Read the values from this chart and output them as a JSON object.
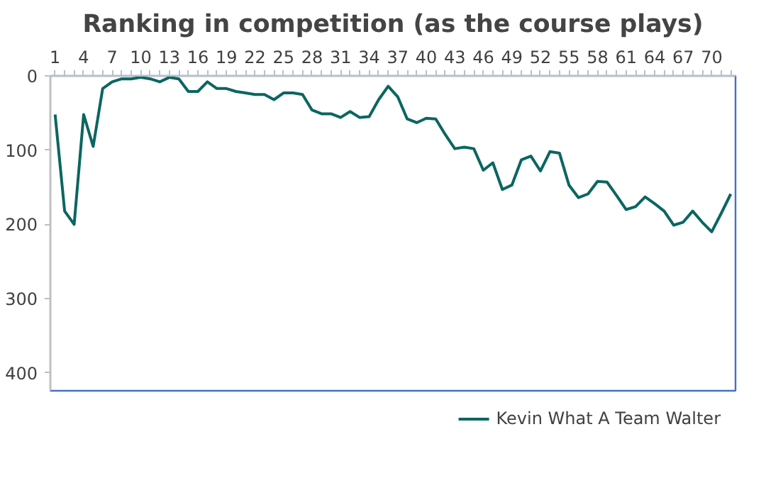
{
  "chart_data": {
    "type": "line",
    "title": "Ranking in competition (as the course plays)",
    "categories": [
      "1",
      null,
      null,
      "4",
      null,
      null,
      "7",
      null,
      null,
      "10",
      null,
      null,
      "13",
      null,
      null,
      "16",
      null,
      null,
      "19",
      null,
      null,
      "22",
      null,
      null,
      "25",
      null,
      null,
      "28",
      null,
      null,
      "31",
      null,
      null,
      "34",
      null,
      null,
      "37",
      null,
      null,
      "40",
      null,
      null,
      "43",
      null,
      null,
      "46",
      null,
      null,
      "49",
      null,
      null,
      "52",
      null,
      null,
      "55",
      null,
      null,
      "58",
      null,
      null,
      "61",
      null,
      null,
      "64",
      null,
      null,
      "67",
      null,
      null,
      "70",
      null,
      null
    ],
    "series": [
      {
        "name": "Kevin What A Team Walter",
        "color": "#0b6660",
        "values": [
          52,
          182,
          200,
          52,
          95,
          17,
          8,
          4,
          4,
          2,
          4,
          8,
          2,
          4,
          21,
          21,
          8,
          17,
          17,
          21,
          23,
          25,
          25,
          32,
          23,
          23,
          25,
          46,
          51,
          51,
          56,
          48,
          56,
          55,
          32,
          14,
          28,
          58,
          63,
          57,
          58,
          79,
          98,
          96,
          98,
          127,
          117,
          153,
          147,
          113,
          108,
          128,
          102,
          104,
          147,
          164,
          159,
          142,
          143,
          161,
          180,
          176,
          163,
          172,
          182,
          201,
          197,
          182,
          197,
          210,
          185,
          159
        ]
      }
    ],
    "ylim": [
      424,
      0
    ],
    "yticks": [
      0,
      100,
      200,
      300,
      400
    ],
    "grid": false,
    "legend": "bottom",
    "marker": "none",
    "line_style": "solid"
  }
}
